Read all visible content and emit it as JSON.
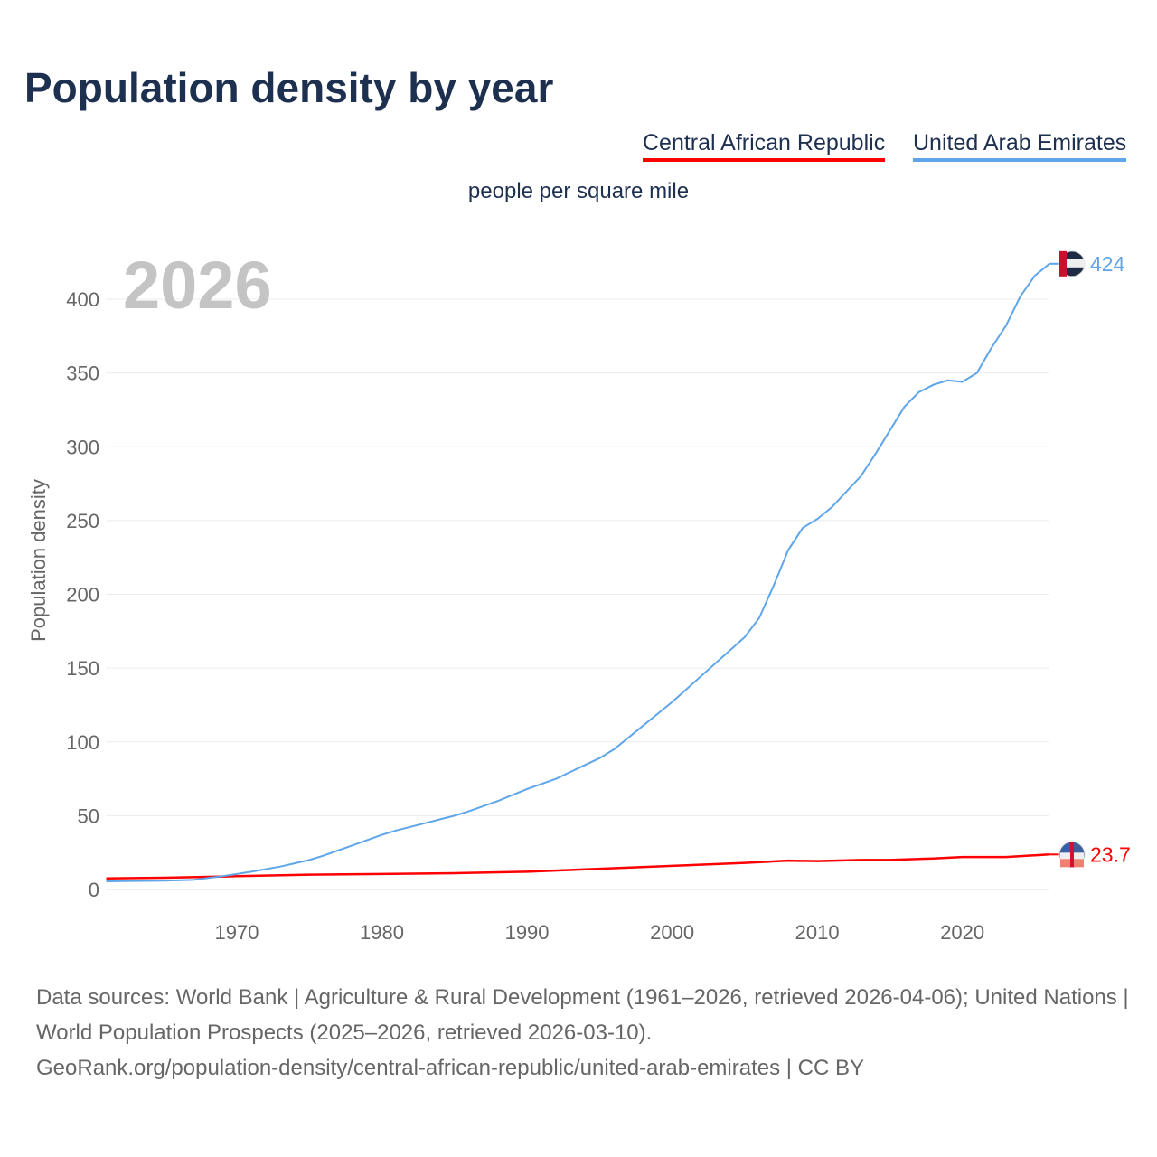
{
  "title": "Population density by year",
  "unit": "people per square mile",
  "year_label": "2026",
  "footer": [
    "Data sources: World Bank | Agriculture & Rural Development (1961–2026, retrieved 2026-04-06); United Nations | World Population Prospects (2025–2026, retrieved 2026-03-10).",
    "GeoRank.org/population-density/central-african-republic/united-arab-emirates | CC BY"
  ],
  "chart_data": {
    "type": "line",
    "title": "Population density by year",
    "xlabel": "",
    "ylabel": "Population density",
    "xlim": [
      1961,
      2026
    ],
    "ylim": [
      0,
      430
    ],
    "xticks": [
      1970,
      1980,
      1990,
      2000,
      2010,
      2020
    ],
    "yticks": [
      0,
      50,
      100,
      150,
      200,
      250,
      300,
      350,
      400
    ],
    "legend": "top-right",
    "series": [
      {
        "name": "Central African Republic",
        "color": "#ff0000",
        "end_label": "23.7",
        "x": [
          1961,
          1965,
          1970,
          1975,
          1980,
          1985,
          1990,
          1995,
          2000,
          2005,
          2008,
          2010,
          2013,
          2015,
          2018,
          2020,
          2023,
          2026
        ],
        "y": [
          7.5,
          8,
          9,
          10,
          10.5,
          11,
          12,
          14,
          16,
          18,
          19.5,
          19.2,
          20,
          20,
          21,
          22,
          22,
          23.7
        ]
      },
      {
        "name": "United Arab Emirates",
        "color": "#5ea5ea",
        "end_label": "424",
        "x": [
          1961,
          1965,
          1967,
          1969,
          1971,
          1973,
          1975,
          1976,
          1978,
          1980,
          1981,
          1983,
          1985,
          1986,
          1988,
          1990,
          1992,
          1995,
          1996,
          2000,
          2005,
          2006,
          2007,
          2008,
          2009,
          2010,
          2011,
          2013,
          2014,
          2016,
          2017,
          2018,
          2019,
          2020,
          2021,
          2022,
          2023,
          2024,
          2025,
          2026
        ],
        "y": [
          5.5,
          6,
          6.5,
          9,
          12,
          15.5,
          20,
          23,
          30,
          37,
          40,
          45,
          50,
          53,
          60,
          68,
          75,
          89,
          95,
          127,
          171,
          184,
          206,
          230,
          245,
          251,
          259,
          280,
          295,
          327,
          337,
          342,
          345,
          344,
          350,
          367,
          382,
          402,
          416,
          424
        ]
      }
    ]
  }
}
